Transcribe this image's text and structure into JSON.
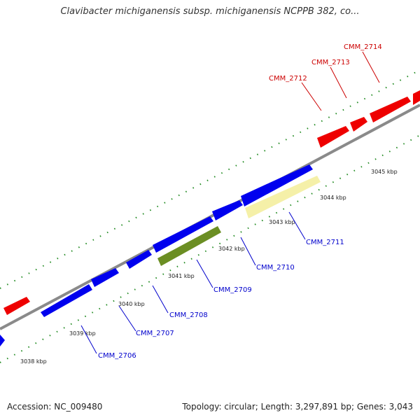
{
  "title": "Clavibacter michiganensis subsp. michiganensis NCPPB 382, co...",
  "footer": {
    "accession": "Accession: NC_009480",
    "summary": "Topology: circular; Length: 3,297,891 bp; Genes: 3,043"
  },
  "colors": {
    "forward_gene": "#ff0000",
    "reverse_gene": "#0000ff",
    "rna": "#6b8e23",
    "highlight": "#f5f0a8",
    "backbone": "#888888",
    "tick": "#228b22",
    "forward_label": "#cc0000",
    "reverse_label": "#0000cc"
  },
  "tick_labels": [
    "3038 kbp",
    "3039 kbp",
    "3040 kbp",
    "3041 kbp",
    "3042 kbp",
    "3043 kbp",
    "3044 kbp",
    "3045 kbp"
  ],
  "gene_labels": {
    "forward": [
      "CMM_2712",
      "CMM_2713",
      "CMM_2714"
    ],
    "reverse": [
      "CMM_2706",
      "CMM_2707",
      "CMM_2708",
      "CMM_2709",
      "CMM_2710",
      "CMM_2711"
    ]
  }
}
